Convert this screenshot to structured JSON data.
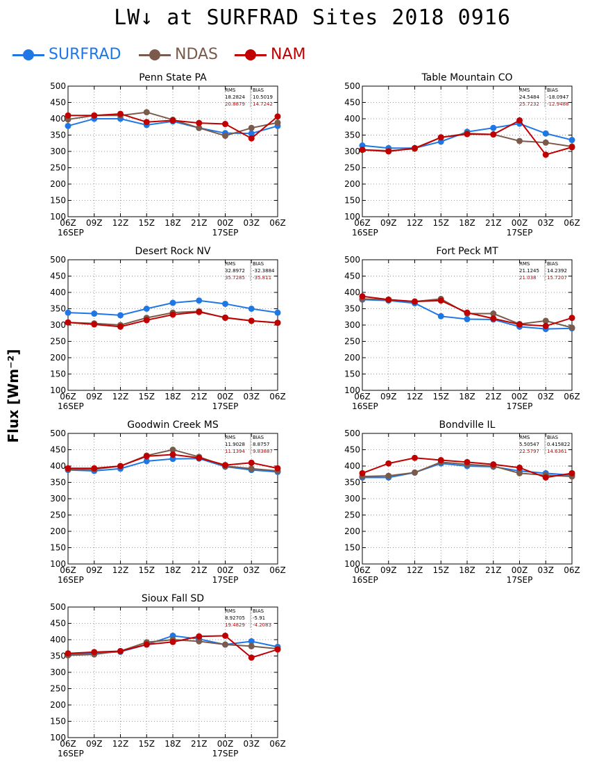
{
  "title": "LW↓ at SURFRAD Sites    2018 0916",
  "ylabel": "Flux [Wm⁻²]",
  "legend": [
    {
      "name": "SURFRAD",
      "color": "#1f77e6"
    },
    {
      "name": "NDAS",
      "color": "#7a5a4a"
    },
    {
      "name": "NAM",
      "color": "#c00000"
    }
  ],
  "colors": {
    "SURFRAD": "#1f77e6",
    "NDAS": "#7a5a4a",
    "NAM": "#c00000",
    "stats_ndas": "#000000",
    "stats_nam": "#c00000"
  },
  "chart_data": [
    {
      "type": "line",
      "title": "Penn State PA",
      "x": [
        "06Z",
        "09Z",
        "12Z",
        "15Z",
        "18Z",
        "21Z",
        "00Z",
        "03Z",
        "06Z"
      ],
      "date_labels": [
        "16SEP",
        "17SEP"
      ],
      "ylim": [
        100,
        500
      ],
      "yticks": [
        100,
        150,
        200,
        250,
        300,
        350,
        400,
        450,
        500
      ],
      "grid": true,
      "stats": {
        "header": [
          "RMS",
          "BIAS"
        ],
        "ndas": [
          "18.2824",
          "10.5019"
        ],
        "nam": [
          "20.8879",
          "14.7242"
        ]
      },
      "series": [
        {
          "name": "SURFRAD",
          "values": [
            378,
            400,
            400,
            381,
            392,
            372,
            356,
            355,
            378
          ]
        },
        {
          "name": "NDAS",
          "values": [
            398,
            410,
            410,
            420,
            397,
            372,
            348,
            372,
            388
          ]
        },
        {
          "name": "NAM",
          "values": [
            410,
            410,
            415,
            390,
            395,
            387,
            384,
            340,
            407
          ]
        }
      ]
    },
    {
      "type": "line",
      "title": "Table Mountain CO",
      "x": [
        "06Z",
        "09Z",
        "12Z",
        "15Z",
        "18Z",
        "21Z",
        "00Z",
        "03Z",
        "06Z"
      ],
      "date_labels": [
        "16SEP",
        "17SEP"
      ],
      "ylim": [
        100,
        500
      ],
      "yticks": [
        100,
        150,
        200,
        250,
        300,
        350,
        400,
        450,
        500
      ],
      "grid": true,
      "stats": {
        "header": [
          "RMS",
          "BIAS"
        ],
        "ndas": [
          "24.5484",
          "-18.0947"
        ],
        "nam": [
          "25.7232",
          "-12.9488"
        ]
      },
      "series": [
        {
          "name": "SURFRAD",
          "values": [
            318,
            310,
            310,
            330,
            360,
            372,
            385,
            355,
            335
          ]
        },
        {
          "name": "NDAS",
          "values": [
            305,
            302,
            308,
            343,
            355,
            352,
            332,
            327,
            315
          ]
        },
        {
          "name": "NAM",
          "values": [
            305,
            300,
            310,
            343,
            353,
            352,
            395,
            290,
            313
          ]
        }
      ]
    },
    {
      "type": "line",
      "title": "Desert Rock NV",
      "x": [
        "06Z",
        "09Z",
        "12Z",
        "15Z",
        "18Z",
        "21Z",
        "00Z",
        "03Z",
        "06Z"
      ],
      "date_labels": [
        "16SEP",
        "17SEP"
      ],
      "ylim": [
        100,
        500
      ],
      "yticks": [
        100,
        150,
        200,
        250,
        300,
        350,
        400,
        450,
        500
      ],
      "grid": true,
      "stats": {
        "header": [
          "RMS",
          "BIAS"
        ],
        "ndas": [
          "32.8972",
          "-32.3884"
        ],
        "nam": [
          "35.7285",
          "-35.811"
        ]
      },
      "series": [
        {
          "name": "SURFRAD",
          "values": [
            338,
            335,
            330,
            350,
            368,
            375,
            365,
            350,
            338
          ]
        },
        {
          "name": "NDAS",
          "values": [
            308,
            305,
            300,
            322,
            338,
            342,
            322,
            313,
            307
          ]
        },
        {
          "name": "NAM",
          "values": [
            308,
            302,
            295,
            315,
            332,
            340,
            323,
            313,
            307
          ]
        }
      ]
    },
    {
      "type": "line",
      "title": "Fort Peck MT",
      "x": [
        "06Z",
        "09Z",
        "12Z",
        "15Z",
        "18Z",
        "21Z",
        "00Z",
        "03Z",
        "06Z"
      ],
      "date_labels": [
        "16SEP",
        "17SEP"
      ],
      "ylim": [
        100,
        500
      ],
      "yticks": [
        100,
        150,
        200,
        250,
        300,
        350,
        400,
        450,
        500
      ],
      "grid": true,
      "stats": {
        "header": [
          "RMS",
          "BIAS"
        ],
        "ndas": [
          "21.1245",
          "14.2392"
        ],
        "nam": [
          "21.038",
          "15.7207"
        ]
      },
      "series": [
        {
          "name": "SURFRAD",
          "values": [
            378,
            375,
            367,
            327,
            318,
            317,
            295,
            288,
            290
          ]
        },
        {
          "name": "NDAS",
          "values": [
            380,
            377,
            372,
            380,
            335,
            335,
            303,
            313,
            292
          ]
        },
        {
          "name": "NAM",
          "values": [
            388,
            378,
            372,
            375,
            338,
            320,
            302,
            297,
            322
          ]
        }
      ]
    },
    {
      "type": "line",
      "title": "Goodwin Creek MS",
      "x": [
        "06Z",
        "09Z",
        "12Z",
        "15Z",
        "18Z",
        "21Z",
        "00Z",
        "03Z",
        "06Z"
      ],
      "date_labels": [
        "16SEP",
        "17SEP"
      ],
      "ylim": [
        100,
        500
      ],
      "yticks": [
        100,
        150,
        200,
        250,
        300,
        350,
        400,
        450,
        500
      ],
      "grid": true,
      "stats": {
        "header": [
          "RMS",
          "BIAS"
        ],
        "ndas": [
          "11.9028",
          "8.8757"
        ],
        "nam": [
          "11.1394",
          "9.83887"
        ]
      },
      "series": [
        {
          "name": "SURFRAD",
          "values": [
            388,
            385,
            392,
            415,
            422,
            423,
            398,
            388,
            382
          ]
        },
        {
          "name": "NDAS",
          "values": [
            390,
            390,
            400,
            432,
            450,
            428,
            400,
            392,
            385
          ]
        },
        {
          "name": "NAM",
          "values": [
            393,
            393,
            400,
            430,
            435,
            425,
            403,
            410,
            393
          ]
        }
      ]
    },
    {
      "type": "line",
      "title": "Bondville IL",
      "x": [
        "06Z",
        "09Z",
        "12Z",
        "15Z",
        "18Z",
        "21Z",
        "00Z",
        "03Z",
        "06Z"
      ],
      "date_labels": [
        "16SEP",
        "17SEP"
      ],
      "ylim": [
        100,
        500
      ],
      "yticks": [
        100,
        150,
        200,
        250,
        300,
        350,
        400,
        450,
        500
      ],
      "grid": true,
      "stats": {
        "header": [
          "RMS",
          "BIAS"
        ],
        "ndas": [
          "5.50547",
          "0.415822"
        ],
        "nam": [
          "22.5797",
          "14.6361"
        ]
      },
      "series": [
        {
          "name": "SURFRAD",
          "values": [
            365,
            365,
            380,
            408,
            400,
            398,
            385,
            378,
            372
          ]
        },
        {
          "name": "NDAS",
          "values": [
            368,
            370,
            380,
            412,
            405,
            400,
            378,
            372,
            368
          ]
        },
        {
          "name": "NAM",
          "values": [
            378,
            408,
            425,
            418,
            412,
            405,
            395,
            365,
            378
          ]
        }
      ]
    },
    {
      "type": "line",
      "title": "Sioux Fall SD",
      "x": [
        "06Z",
        "09Z",
        "12Z",
        "15Z",
        "18Z",
        "21Z",
        "00Z",
        "03Z",
        "06Z"
      ],
      "date_labels": [
        "16SEP",
        "17SEP"
      ],
      "ylim": [
        100,
        500
      ],
      "yticks": [
        100,
        150,
        200,
        250,
        300,
        350,
        400,
        450,
        500
      ],
      "grid": true,
      "stats": {
        "header": [
          "RMS",
          "BIAS"
        ],
        "ndas": [
          "8.92705",
          "-5.91"
        ],
        "nam": [
          "19.4829",
          "-4.2083"
        ]
      },
      "series": [
        {
          "name": "SURFRAD",
          "values": [
            355,
            358,
            363,
            385,
            412,
            402,
            385,
            395,
            378
          ]
        },
        {
          "name": "NDAS",
          "values": [
            352,
            355,
            365,
            392,
            400,
            395,
            385,
            380,
            372
          ]
        },
        {
          "name": "NAM",
          "values": [
            358,
            362,
            365,
            385,
            393,
            410,
            412,
            345,
            370
          ]
        }
      ]
    }
  ]
}
